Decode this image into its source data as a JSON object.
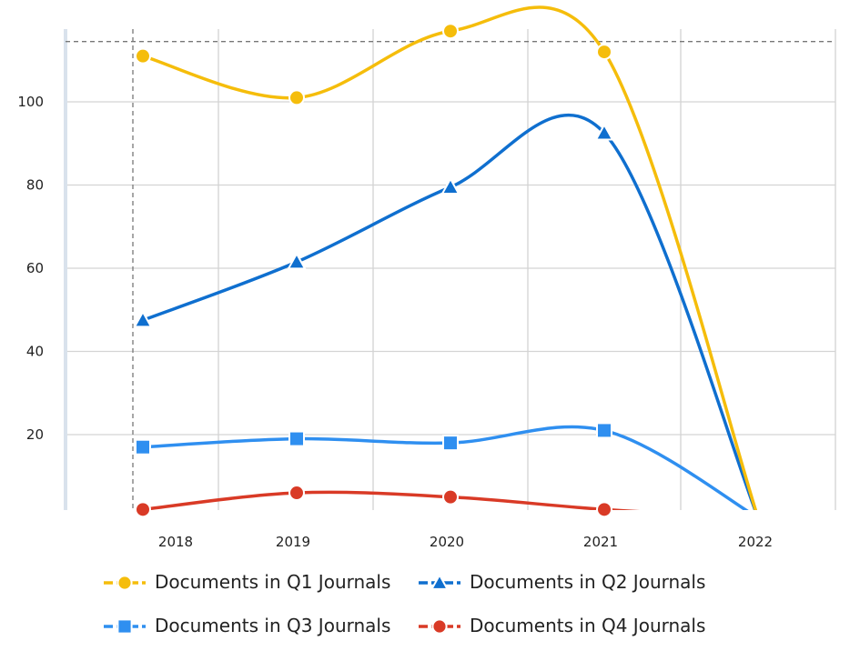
{
  "chart_data": {
    "type": "line",
    "title": "",
    "xlabel": "",
    "ylabel": "",
    "categories": [
      "2018",
      "2019",
      "2020",
      "2021",
      "2022"
    ],
    "yticks": [
      "20",
      "40",
      "60",
      "80",
      "100"
    ],
    "ylim": [
      2,
      117
    ],
    "grid": true,
    "legend_position": "bottom",
    "series": [
      {
        "name": "Documents in Q1 Journals",
        "color": "#f5bd0b",
        "marker": "circle",
        "values": [
          111,
          101,
          117,
          112,
          0
        ]
      },
      {
        "name": "Documents in Q2 Journals",
        "color": "#0f6fcf",
        "marker": "triangle",
        "values": [
          47.5,
          61.5,
          79.5,
          92.5,
          0
        ]
      },
      {
        "name": "Documents in Q3 Journals",
        "color": "#2f8ff0",
        "marker": "square",
        "values": [
          17,
          19,
          18,
          21,
          0
        ]
      },
      {
        "name": "Documents in Q4 Journals",
        "color": "#d93a26",
        "marker": "circle",
        "values": [
          2,
          6,
          5,
          2,
          0
        ]
      }
    ],
    "reference_line_y": 114.5
  }
}
